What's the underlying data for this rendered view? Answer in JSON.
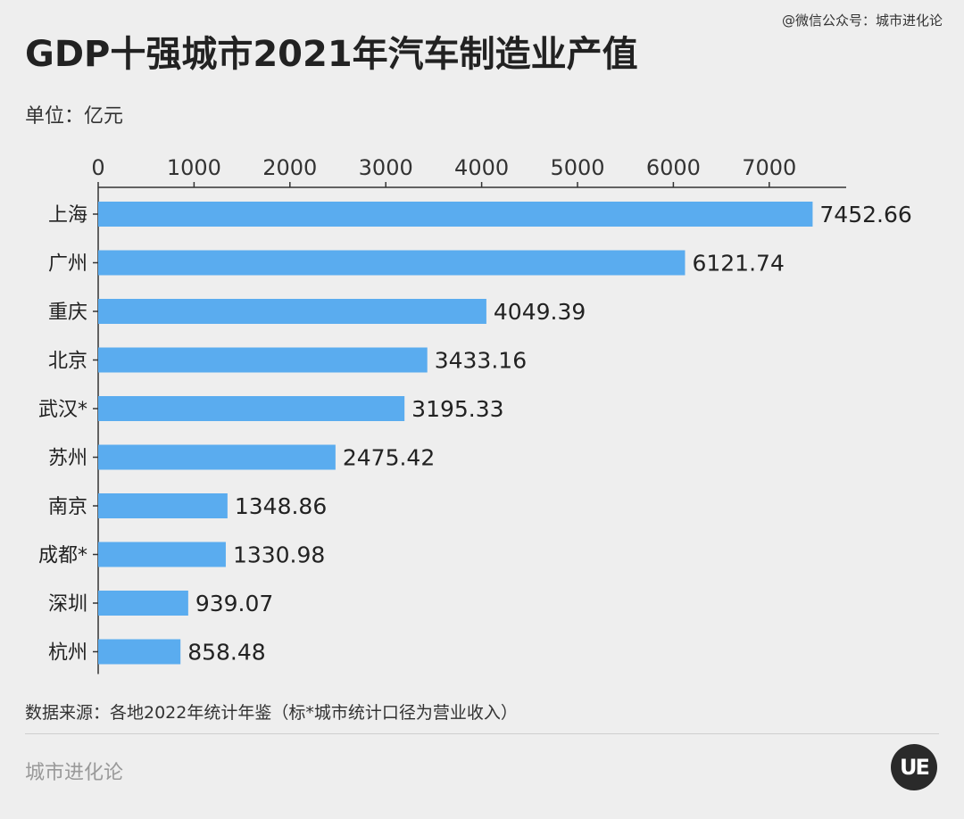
{
  "header": {
    "credit": "@微信公众号：城市进化论",
    "title": "GDP十强城市2021年汽车制造业产值",
    "unit": "单位：亿元"
  },
  "footer": {
    "source": "数据来源：各地2022年统计年鉴（标*城市统计口径为营业收入）",
    "brand": "城市进化论",
    "logo_text": "UE"
  },
  "colors": {
    "bar": "#5aacef",
    "background": "#eeeeee"
  },
  "chart_data": {
    "type": "bar",
    "orientation": "horizontal",
    "title": "GDP十强城市2021年汽车制造业产值",
    "unit": "亿元",
    "xlim": [
      0,
      7800
    ],
    "ticks": [
      0,
      1000,
      2000,
      3000,
      4000,
      5000,
      6000,
      7000
    ],
    "tick_labels": [
      "0",
      "1000",
      "2000",
      "3000",
      "4000",
      "5000",
      "6000",
      "7000"
    ],
    "categories": [
      "上海",
      "广州",
      "重庆",
      "北京",
      "武汉*",
      "苏州",
      "南京",
      "成都*",
      "深圳",
      "杭州"
    ],
    "values": [
      7452.66,
      6121.74,
      4049.39,
      3433.16,
      3195.33,
      2475.42,
      1348.86,
      1330.98,
      939.07,
      858.48
    ],
    "value_labels": [
      "7452.66",
      "6121.74",
      "4049.39",
      "3433.16",
      "3195.33",
      "2475.42",
      "1348.86",
      "1330.98",
      "939.07",
      "858.48"
    ],
    "axis_position": "top",
    "grid": false
  }
}
